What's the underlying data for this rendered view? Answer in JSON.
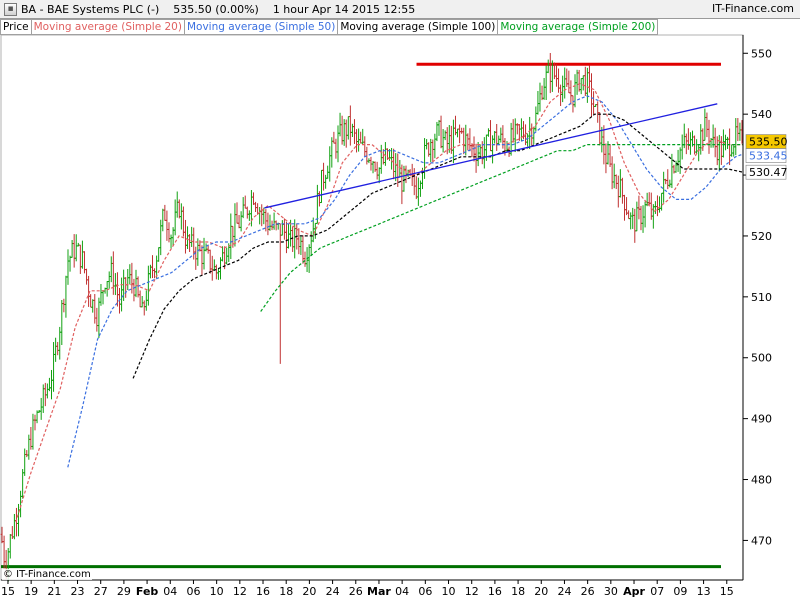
{
  "header": {
    "symbol_name": "BA - BAE Systems PLC (-)",
    "price_change": "535.50 (0.00%)",
    "timeframe_date": "1 hour  Apr 14 2015 12:55",
    "brand": "IT-Finance.com"
  },
  "legend": [
    {
      "label": "Price",
      "color": "#000000"
    },
    {
      "label": "Moving average (Simple 20)",
      "color": "#e06060"
    },
    {
      "label": "Moving average (Simple 50)",
      "color": "#3a6fe0"
    },
    {
      "label": "Moving average (Simple 100)",
      "color": "#000000"
    },
    {
      "label": "Moving average (Simple 200)",
      "color": "#00a020"
    }
  ],
  "copyright": "© IT-Finance.com",
  "chart_data": {
    "type": "line",
    "price_type": "ohlc-bars",
    "ylim": [
      463.5,
      553
    ],
    "xlim": [
      "Jan 15",
      "Apr 15"
    ],
    "y_ticks": [
      470,
      480,
      490,
      500,
      510,
      520,
      530,
      540,
      550
    ],
    "x_ticks": [
      {
        "label": "15",
        "bold": false
      },
      {
        "label": "19",
        "bold": false
      },
      {
        "label": "21",
        "bold": false
      },
      {
        "label": "23",
        "bold": false
      },
      {
        "label": "27",
        "bold": false
      },
      {
        "label": "29",
        "bold": false
      },
      {
        "label": "Feb",
        "bold": true
      },
      {
        "label": "04",
        "bold": false
      },
      {
        "label": "06",
        "bold": false
      },
      {
        "label": "10",
        "bold": false
      },
      {
        "label": "12",
        "bold": false
      },
      {
        "label": "16",
        "bold": false
      },
      {
        "label": "18",
        "bold": false
      },
      {
        "label": "20",
        "bold": false
      },
      {
        "label": "24",
        "bold": false
      },
      {
        "label": "26",
        "bold": false
      },
      {
        "label": "Mar",
        "bold": true
      },
      {
        "label": "04",
        "bold": false
      },
      {
        "label": "06",
        "bold": false
      },
      {
        "label": "10",
        "bold": false
      },
      {
        "label": "12",
        "bold": false
      },
      {
        "label": "16",
        "bold": false
      },
      {
        "label": "18",
        "bold": false
      },
      {
        "label": "20",
        "bold": false
      },
      {
        "label": "24",
        "bold": false
      },
      {
        "label": "26",
        "bold": false
      },
      {
        "label": "30",
        "bold": false
      },
      {
        "label": "Apr",
        "bold": true
      },
      {
        "label": "07",
        "bold": false
      },
      {
        "label": "09",
        "bold": false
      },
      {
        "label": "13",
        "bold": false
      },
      {
        "label": "15",
        "bold": false
      }
    ],
    "price_labels": [
      {
        "value": 535.5,
        "text": "535.50",
        "bg": "#f5c800",
        "fg": "#000000"
      },
      {
        "value": 533.45,
        "text": "533.45",
        "bg": "#ffffff",
        "fg": "#3a6fe0"
      },
      {
        "value": 530.47,
        "text": "530.47",
        "bg": "#ffffff",
        "fg": "#000000"
      }
    ],
    "horizontal_lines": [
      {
        "value": 548.2,
        "from": 0.56,
        "to": 1.0,
        "color": "#e00000"
      },
      {
        "value": 465.7,
        "from": 0.0,
        "to": 1.0,
        "color": "#007000"
      }
    ],
    "trendline": {
      "from": [
        0.355,
        524.6
      ],
      "to": [
        0.995,
        541.7
      ],
      "color": "#2020e0"
    },
    "price_anchors": [
      [
        0.0,
        471
      ],
      [
        0.006,
        466
      ],
      [
        0.012,
        470
      ],
      [
        0.02,
        474
      ],
      [
        0.03,
        481
      ],
      [
        0.04,
        487
      ],
      [
        0.05,
        491
      ],
      [
        0.06,
        494
      ],
      [
        0.07,
        498
      ],
      [
        0.08,
        506
      ],
      [
        0.09,
        516
      ],
      [
        0.1,
        518
      ],
      [
        0.11,
        516
      ],
      [
        0.12,
        510
      ],
      [
        0.13,
        507
      ],
      [
        0.14,
        513
      ],
      [
        0.15,
        514
      ],
      [
        0.16,
        509
      ],
      [
        0.17,
        513
      ],
      [
        0.18,
        512
      ],
      [
        0.19,
        507
      ],
      [
        0.2,
        513
      ],
      [
        0.21,
        517
      ],
      [
        0.22,
        524
      ],
      [
        0.23,
        520
      ],
      [
        0.24,
        525
      ],
      [
        0.25,
        519
      ],
      [
        0.26,
        518
      ],
      [
        0.27,
        517
      ],
      [
        0.28,
        516
      ],
      [
        0.29,
        514
      ],
      [
        0.3,
        517
      ],
      [
        0.31,
        521
      ],
      [
        0.32,
        522
      ],
      [
        0.33,
        524
      ],
      [
        0.34,
        527
      ],
      [
        0.35,
        524
      ],
      [
        0.36,
        522
      ],
      [
        0.37,
        521
      ],
      [
        0.38,
        521
      ],
      [
        0.39,
        519
      ],
      [
        0.4,
        520
      ],
      [
        0.41,
        517
      ],
      [
        0.42,
        521
      ],
      [
        0.43,
        528
      ],
      [
        0.44,
        532
      ],
      [
        0.45,
        535
      ],
      [
        0.46,
        537
      ],
      [
        0.47,
        538
      ],
      [
        0.48,
        535
      ],
      [
        0.49,
        534
      ],
      [
        0.5,
        533
      ],
      [
        0.51,
        531
      ],
      [
        0.52,
        533
      ],
      [
        0.53,
        531
      ],
      [
        0.54,
        529
      ],
      [
        0.55,
        529
      ],
      [
        0.56,
        528
      ],
      [
        0.57,
        533
      ],
      [
        0.58,
        536
      ],
      [
        0.59,
        537
      ],
      [
        0.6,
        535
      ],
      [
        0.61,
        536
      ],
      [
        0.62,
        537
      ],
      [
        0.63,
        535
      ],
      [
        0.64,
        534
      ],
      [
        0.65,
        534
      ],
      [
        0.66,
        536
      ],
      [
        0.67,
        536
      ],
      [
        0.68,
        535
      ],
      [
        0.69,
        536
      ],
      [
        0.7,
        537
      ],
      [
        0.71,
        537
      ],
      [
        0.72,
        539
      ],
      [
        0.73,
        545
      ],
      [
        0.74,
        547
      ],
      [
        0.75,
        546
      ],
      [
        0.76,
        544
      ],
      [
        0.77,
        543
      ],
      [
        0.78,
        546
      ],
      [
        0.79,
        545
      ],
      [
        0.8,
        541
      ],
      [
        0.81,
        535
      ],
      [
        0.82,
        531
      ],
      [
        0.83,
        529
      ],
      [
        0.84,
        526
      ],
      [
        0.85,
        522
      ],
      [
        0.86,
        523
      ],
      [
        0.87,
        525
      ],
      [
        0.88,
        523
      ],
      [
        0.89,
        527
      ],
      [
        0.9,
        530
      ],
      [
        0.91,
        533
      ],
      [
        0.92,
        535
      ],
      [
        0.93,
        535
      ],
      [
        0.94,
        536
      ],
      [
        0.95,
        538
      ],
      [
        0.96,
        535
      ],
      [
        0.97,
        534
      ],
      [
        0.98,
        535
      ],
      [
        0.99,
        536
      ],
      [
        1.0,
        535.5
      ]
    ],
    "series": [
      {
        "name": "Moving average (Simple 20)",
        "color": "#e06060",
        "dash": "3,2",
        "values": [
          [
            0.02,
            473
          ],
          [
            0.04,
            481
          ],
          [
            0.06,
            488
          ],
          [
            0.08,
            495
          ],
          [
            0.1,
            505
          ],
          [
            0.12,
            511
          ],
          [
            0.14,
            511
          ],
          [
            0.16,
            512
          ],
          [
            0.18,
            512
          ],
          [
            0.2,
            511
          ],
          [
            0.22,
            516
          ],
          [
            0.24,
            520
          ],
          [
            0.26,
            519
          ],
          [
            0.28,
            519
          ],
          [
            0.3,
            518
          ],
          [
            0.32,
            519
          ],
          [
            0.34,
            523
          ],
          [
            0.36,
            525
          ],
          [
            0.38,
            523
          ],
          [
            0.4,
            521
          ],
          [
            0.42,
            520
          ],
          [
            0.44,
            525
          ],
          [
            0.46,
            532
          ],
          [
            0.48,
            535
          ],
          [
            0.5,
            535
          ],
          [
            0.52,
            533
          ],
          [
            0.54,
            531
          ],
          [
            0.56,
            530
          ],
          [
            0.58,
            532
          ],
          [
            0.6,
            534
          ],
          [
            0.62,
            535
          ],
          [
            0.64,
            535
          ],
          [
            0.66,
            535
          ],
          [
            0.68,
            535
          ],
          [
            0.7,
            536
          ],
          [
            0.72,
            538
          ],
          [
            0.74,
            542
          ],
          [
            0.76,
            544
          ],
          [
            0.78,
            545
          ],
          [
            0.8,
            544
          ],
          [
            0.82,
            539
          ],
          [
            0.84,
            532
          ],
          [
            0.86,
            527
          ],
          [
            0.88,
            524
          ],
          [
            0.9,
            526
          ],
          [
            0.92,
            530
          ],
          [
            0.94,
            534
          ],
          [
            0.96,
            536
          ],
          [
            0.98,
            535
          ],
          [
            1.0,
            535
          ]
        ]
      },
      {
        "name": "Moving average (Simple 50)",
        "color": "#3a6fe0",
        "dash": "3,2",
        "values": [
          [
            0.09,
            482
          ],
          [
            0.11,
            492
          ],
          [
            0.13,
            503
          ],
          [
            0.15,
            508
          ],
          [
            0.17,
            511
          ],
          [
            0.19,
            512
          ],
          [
            0.21,
            513
          ],
          [
            0.23,
            514
          ],
          [
            0.25,
            516
          ],
          [
            0.27,
            518
          ],
          [
            0.29,
            519
          ],
          [
            0.31,
            519
          ],
          [
            0.33,
            520
          ],
          [
            0.35,
            521
          ],
          [
            0.37,
            522
          ],
          [
            0.39,
            522
          ],
          [
            0.41,
            522
          ],
          [
            0.43,
            523
          ],
          [
            0.45,
            526
          ],
          [
            0.47,
            530
          ],
          [
            0.49,
            533
          ],
          [
            0.51,
            534
          ],
          [
            0.53,
            534
          ],
          [
            0.55,
            533
          ],
          [
            0.57,
            532
          ],
          [
            0.59,
            532
          ],
          [
            0.61,
            533
          ],
          [
            0.63,
            534
          ],
          [
            0.65,
            535
          ],
          [
            0.67,
            535
          ],
          [
            0.69,
            535
          ],
          [
            0.71,
            536
          ],
          [
            0.73,
            538
          ],
          [
            0.75,
            540
          ],
          [
            0.77,
            542
          ],
          [
            0.79,
            543
          ],
          [
            0.81,
            542
          ],
          [
            0.83,
            539
          ],
          [
            0.85,
            535
          ],
          [
            0.87,
            531
          ],
          [
            0.89,
            528
          ],
          [
            0.91,
            526
          ],
          [
            0.93,
            526
          ],
          [
            0.95,
            528
          ],
          [
            0.97,
            531
          ],
          [
            0.99,
            533
          ],
          [
            1.0,
            533.45
          ]
        ]
      },
      {
        "name": "Moving average (Simple 100)",
        "color": "#000000",
        "dash": "3,2",
        "values": [
          [
            0.178,
            496.6
          ],
          [
            0.2,
            503
          ],
          [
            0.22,
            508
          ],
          [
            0.24,
            511
          ],
          [
            0.26,
            513
          ],
          [
            0.28,
            514
          ],
          [
            0.3,
            515
          ],
          [
            0.32,
            516
          ],
          [
            0.34,
            518
          ],
          [
            0.36,
            519
          ],
          [
            0.38,
            519
          ],
          [
            0.4,
            520
          ],
          [
            0.42,
            520
          ],
          [
            0.44,
            521
          ],
          [
            0.46,
            523
          ],
          [
            0.48,
            525
          ],
          [
            0.5,
            527
          ],
          [
            0.52,
            528
          ],
          [
            0.54,
            529
          ],
          [
            0.56,
            530
          ],
          [
            0.58,
            531
          ],
          [
            0.6,
            532
          ],
          [
            0.62,
            533
          ],
          [
            0.64,
            533
          ],
          [
            0.66,
            533
          ],
          [
            0.68,
            534
          ],
          [
            0.7,
            534
          ],
          [
            0.72,
            535
          ],
          [
            0.74,
            536
          ],
          [
            0.76,
            537
          ],
          [
            0.78,
            538
          ],
          [
            0.8,
            540
          ],
          [
            0.82,
            540
          ],
          [
            0.84,
            539
          ],
          [
            0.86,
            537
          ],
          [
            0.88,
            535
          ],
          [
            0.9,
            533
          ],
          [
            0.92,
            531
          ],
          [
            0.94,
            531
          ],
          [
            0.96,
            531
          ],
          [
            0.98,
            531
          ],
          [
            1.0,
            530.47
          ]
        ]
      },
      {
        "name": "Moving average (Simple 200)",
        "color": "#00a020",
        "dash": "3,2",
        "values": [
          [
            0.35,
            507.6
          ],
          [
            0.37,
            511
          ],
          [
            0.39,
            514
          ],
          [
            0.41,
            516
          ],
          [
            0.43,
            518
          ],
          [
            0.45,
            519
          ],
          [
            0.47,
            520
          ],
          [
            0.49,
            521
          ],
          [
            0.51,
            522
          ],
          [
            0.53,
            523
          ],
          [
            0.55,
            524
          ],
          [
            0.57,
            525
          ],
          [
            0.59,
            526
          ],
          [
            0.61,
            527
          ],
          [
            0.63,
            528
          ],
          [
            0.65,
            529
          ],
          [
            0.67,
            530
          ],
          [
            0.69,
            531
          ],
          [
            0.71,
            532
          ],
          [
            0.73,
            533
          ],
          [
            0.75,
            534
          ],
          [
            0.77,
            534
          ],
          [
            0.79,
            535
          ],
          [
            0.81,
            535
          ],
          [
            0.83,
            535
          ],
          [
            0.85,
            535
          ],
          [
            0.87,
            535
          ],
          [
            0.89,
            535
          ],
          [
            0.91,
            535
          ],
          [
            0.93,
            535
          ],
          [
            0.95,
            535
          ],
          [
            0.97,
            535
          ],
          [
            1.0,
            535
          ]
        ]
      }
    ]
  }
}
